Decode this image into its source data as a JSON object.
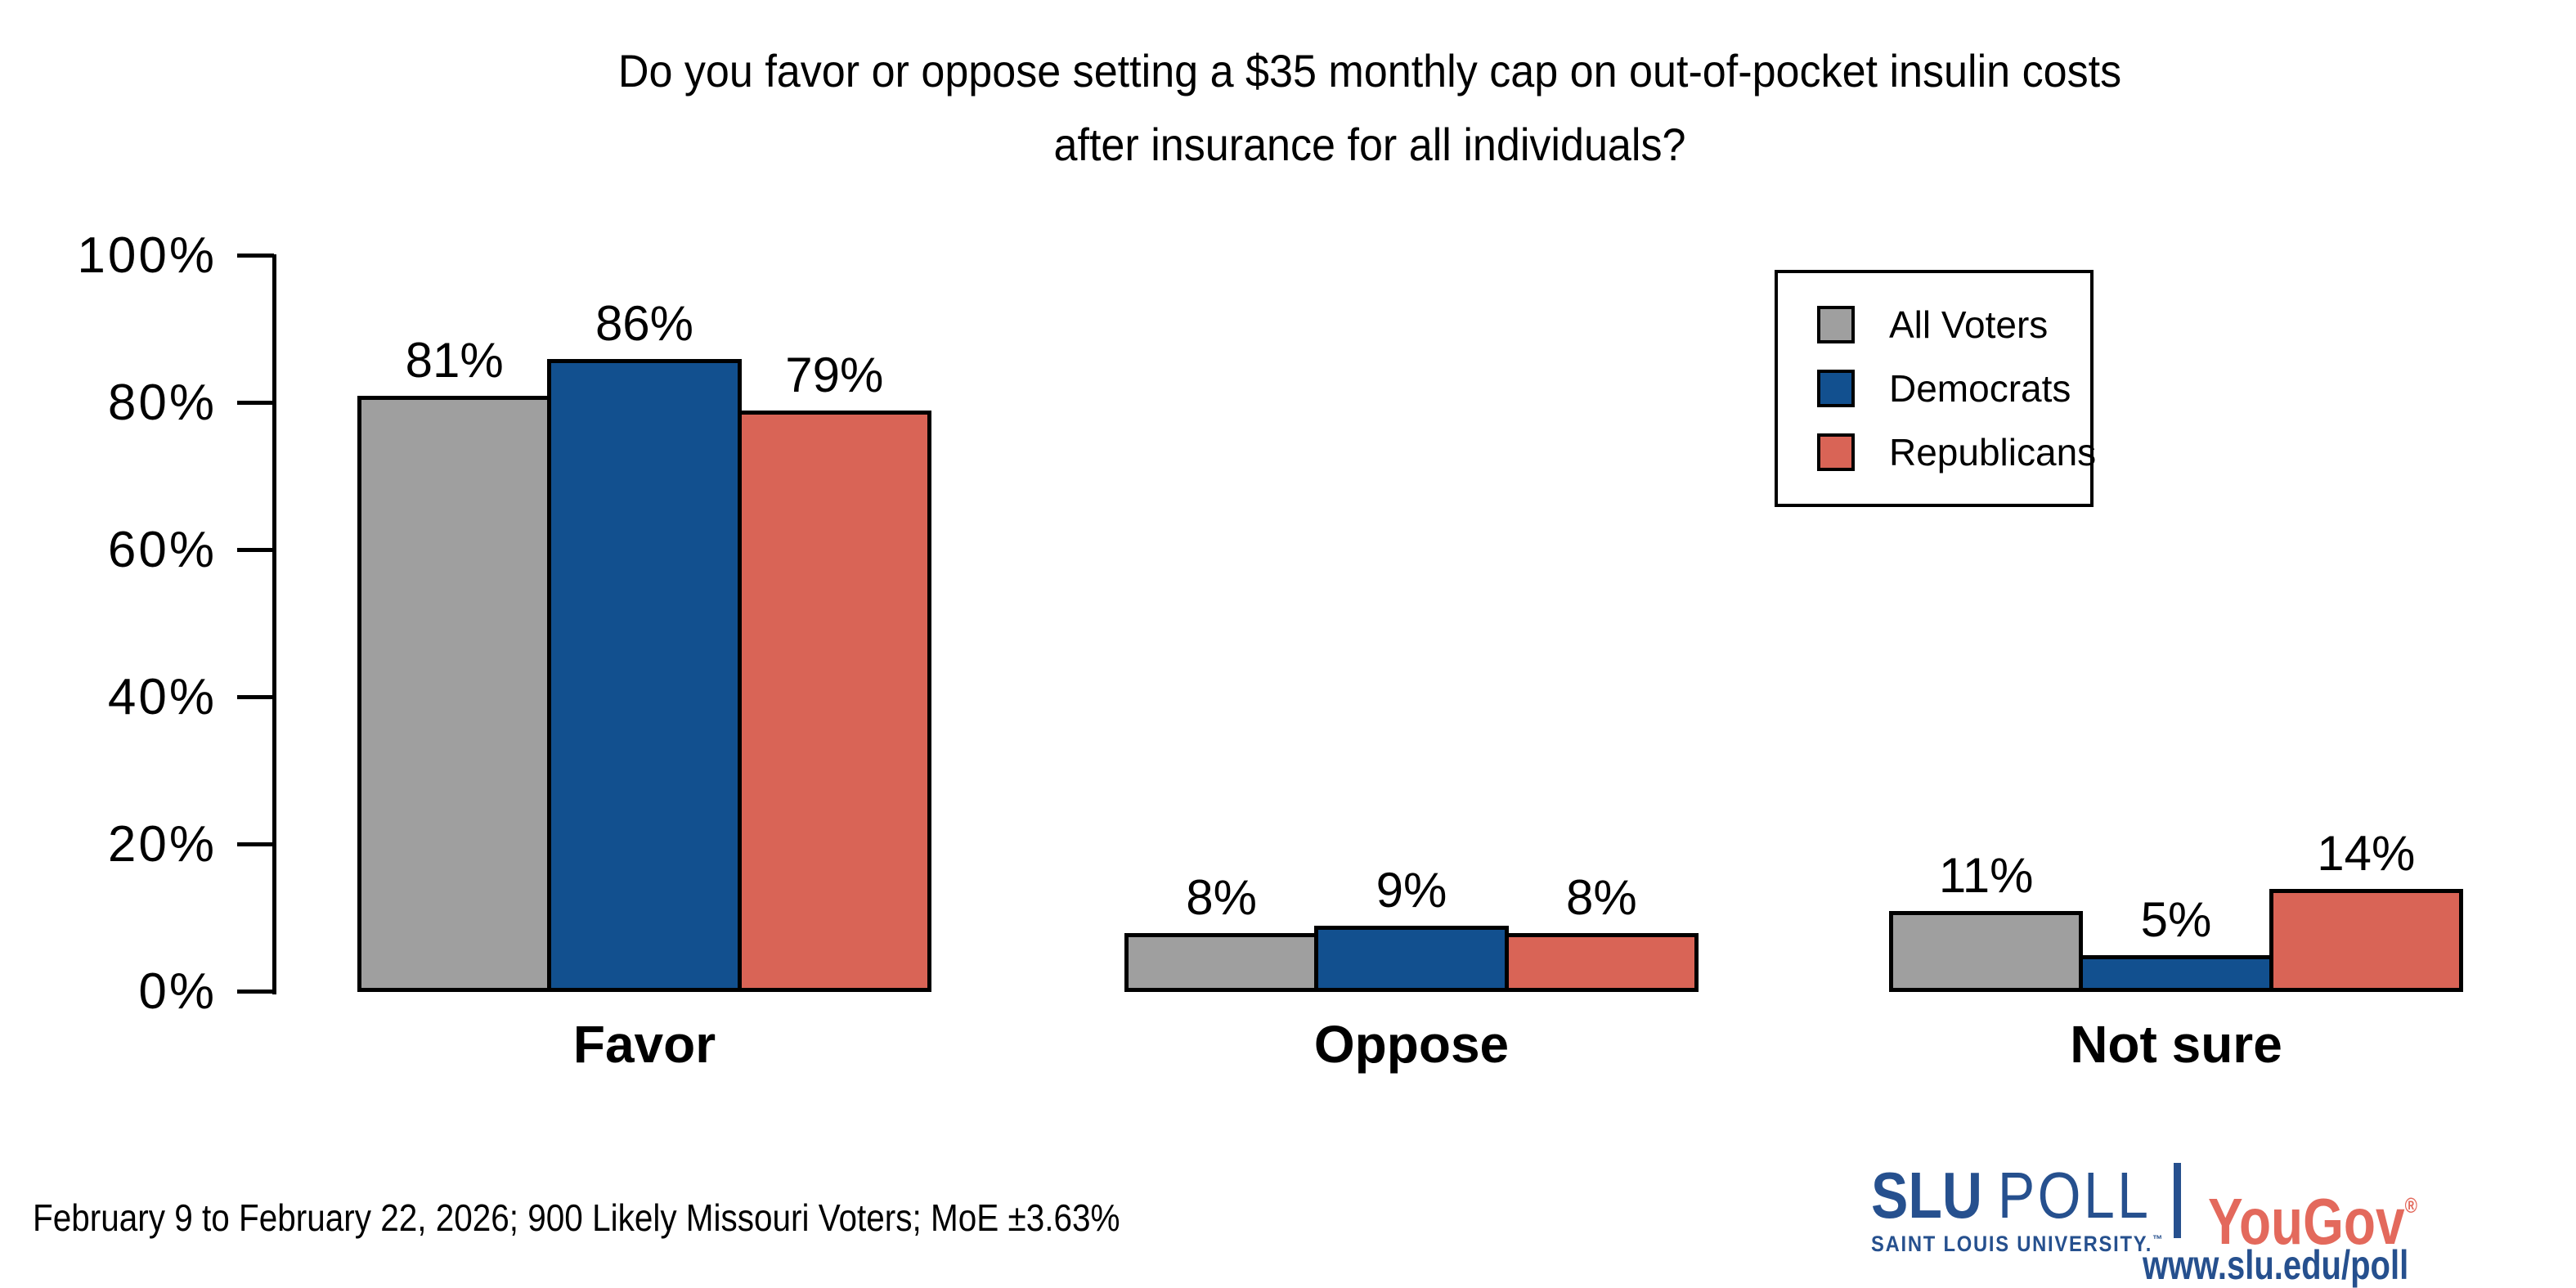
{
  "title": {
    "line1": "Do you favor or oppose setting a $35 monthly cap on out-of-pocket insulin costs",
    "line2": "after insurance for all individuals?"
  },
  "chart_data": {
    "type": "bar",
    "title": "Do you favor or oppose setting a $35 monthly cap on out-of-pocket insulin costs after insurance for all individuals?",
    "categories": [
      "Favor",
      "Oppose",
      "Not sure"
    ],
    "series": [
      {
        "name": "All Voters",
        "color": "#9f9f9f",
        "values": [
          81,
          8,
          11
        ]
      },
      {
        "name": "Democrats",
        "color": "#12508f",
        "values": [
          86,
          9,
          5
        ]
      },
      {
        "name": "Republicans",
        "color": "#d96456",
        "values": [
          79,
          8,
          14
        ]
      }
    ],
    "value_label_suffix": "%",
    "ylim": [
      0,
      100
    ],
    "yticks": [
      "100%",
      "80%",
      "60%",
      "40%",
      "20%",
      "0%"
    ],
    "xlabel": "",
    "ylabel": "",
    "grid": false,
    "legend_position": "upper right",
    "bar_border_color": "#000000"
  },
  "footer": {
    "note": "February 9 to February 22, 2026; 900 Likely Missouri Voters; MoE ±3.63%"
  },
  "branding": {
    "slu_word": "SLU",
    "poll_word": "POLL",
    "slu_subtitle": "SAINT LOUIS UNIVERSITY.",
    "trademark": "™",
    "partner": "YouGov",
    "registered": "®",
    "url": "www.slu.edu/poll",
    "slu_blue": "#26508e",
    "yougov_coral": "#e3695c"
  }
}
